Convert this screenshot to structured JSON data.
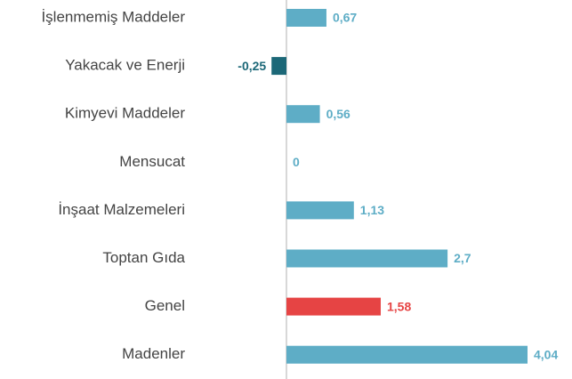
{
  "chart_data": {
    "type": "hbar",
    "categories": [
      "İşlenmemiş Maddeler",
      "Yakacak ve Enerji",
      "Kimyevi Maddeler",
      "Mensucat",
      "İnşaat Malzemeleri",
      "Toptan Gıda",
      "Genel",
      "Madenler"
    ],
    "values": [
      0.67,
      -0.25,
      0.56,
      0,
      1.13,
      2.7,
      1.58,
      4.04
    ],
    "value_labels": [
      "0,67",
      "-0,25",
      "0,56",
      "0",
      "1,13",
      "2,7",
      "1,58",
      "4,04"
    ],
    "colors": [
      "#5eadc6",
      "#1c6878",
      "#5eadc6",
      "#5eadc6",
      "#5eadc6",
      "#5eadc6",
      "#e64444",
      "#5eadc6"
    ]
  }
}
